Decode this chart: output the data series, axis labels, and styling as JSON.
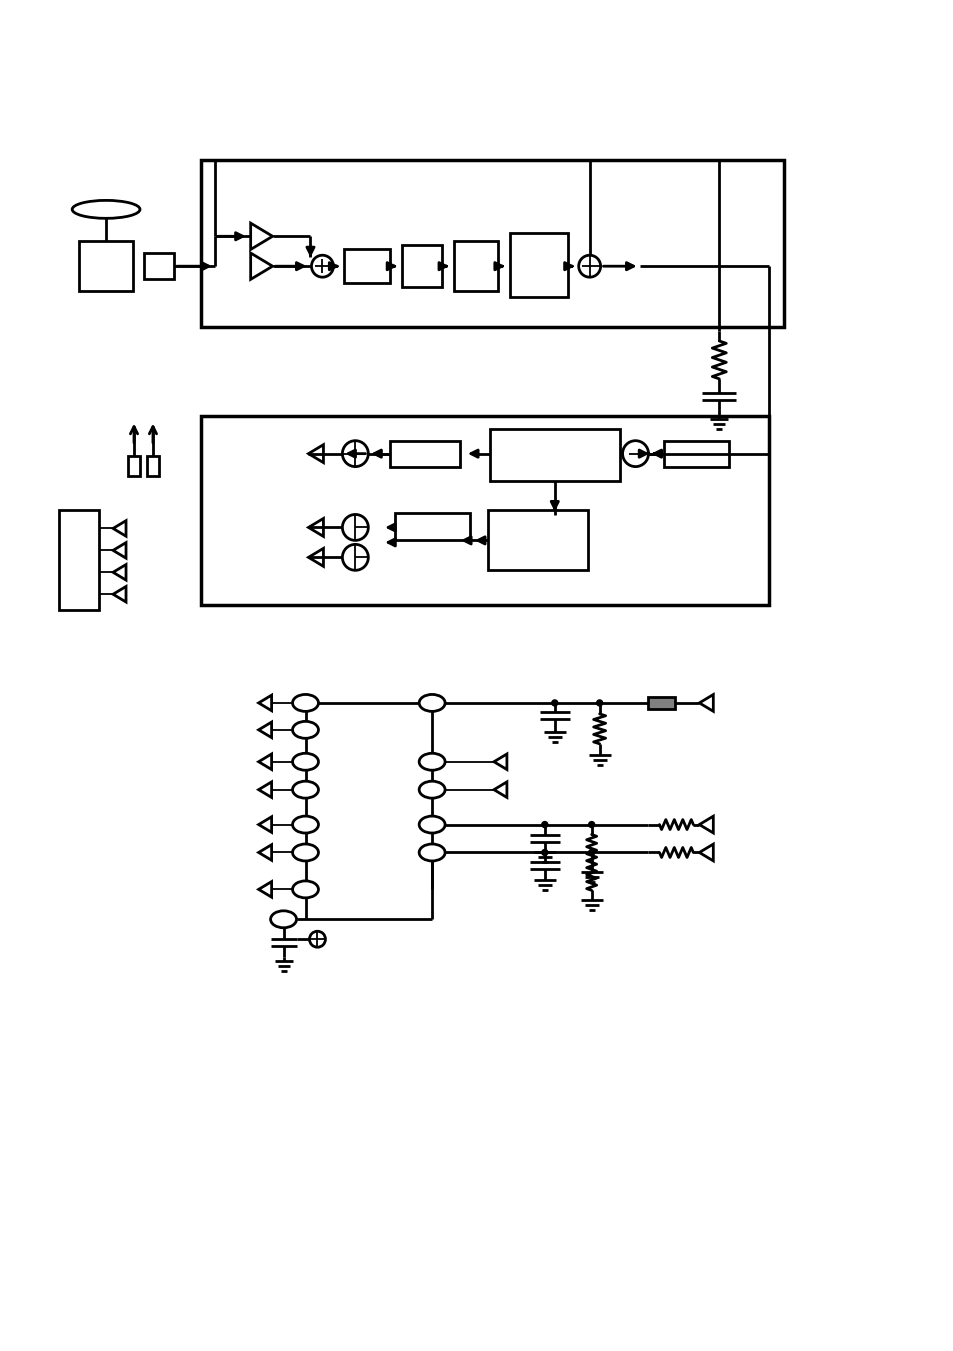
{
  "background_color": "#ffffff",
  "line_color": "#000000",
  "fig_width": 9.54,
  "fig_height": 13.51,
  "dpi": 100
}
